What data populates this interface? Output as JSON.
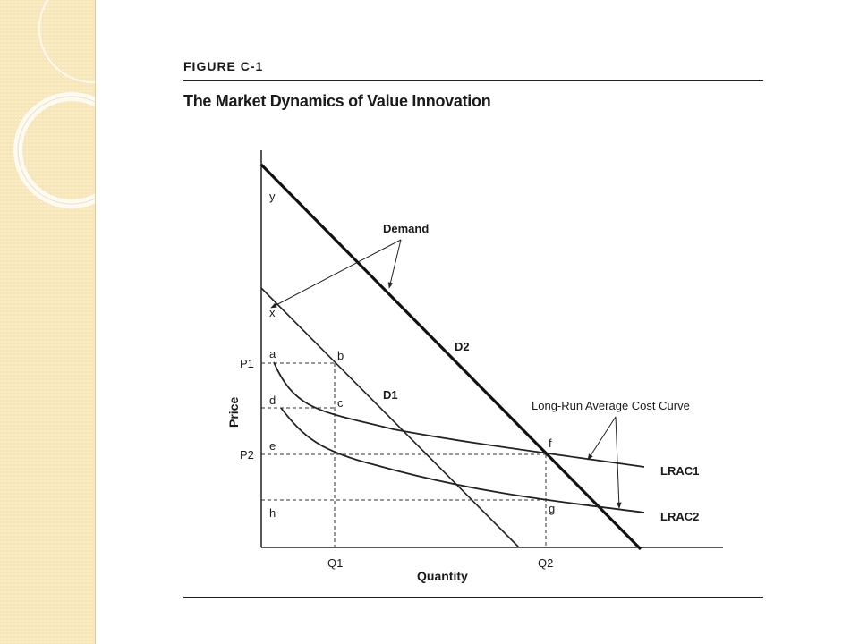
{
  "figure": {
    "label": "FIGURE C-1",
    "title": "The Market Dynamics of Value Innovation"
  },
  "diagram": {
    "axes": {
      "y_label": "Price",
      "x_label": "Quantity"
    },
    "y_ticks": [
      "P1",
      "P2"
    ],
    "x_ticks": [
      "Q1",
      "Q2"
    ],
    "point_labels": [
      "y",
      "x",
      "a",
      "b",
      "c",
      "d",
      "e",
      "f",
      "g",
      "h"
    ],
    "curves": [
      "D1",
      "D2",
      "LRAC1",
      "LRAC2"
    ],
    "annotations": {
      "demand": "Demand",
      "lrac": "Long-Run Average Cost Curve"
    }
  }
}
